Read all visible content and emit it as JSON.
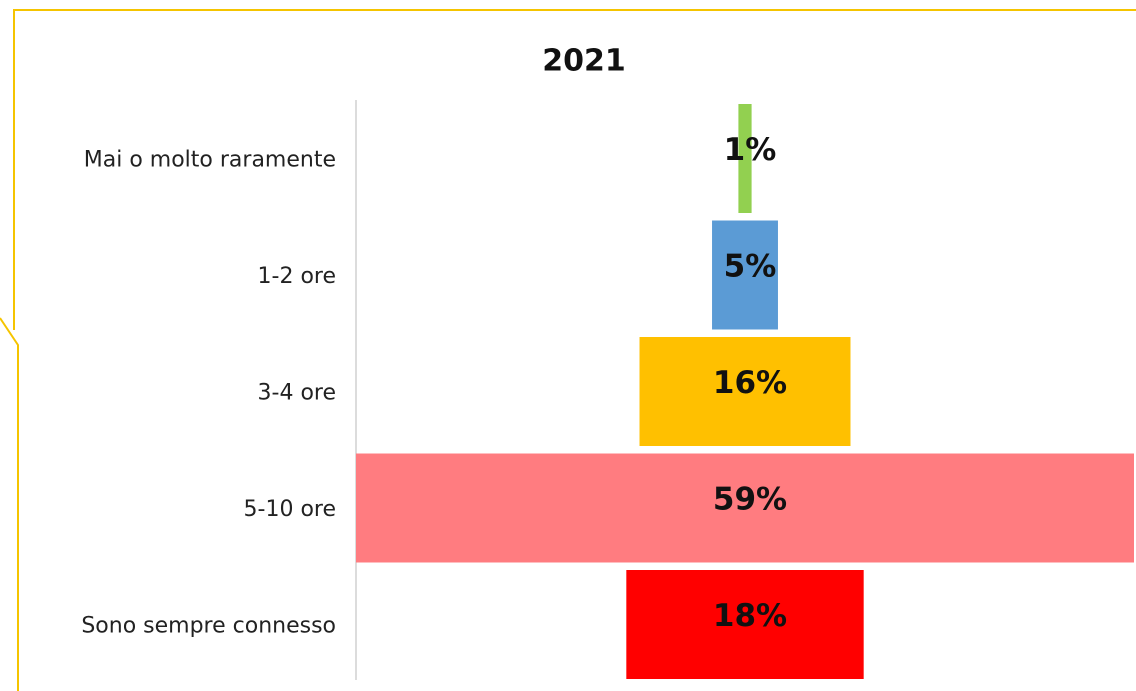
{
  "chart_data": {
    "type": "funnel",
    "title": "2021",
    "categories": [
      "Mai o molto raramente",
      "1-2 ore",
      "3-4 ore",
      "5-10 ore",
      "Sono sempre connesso"
    ],
    "values": [
      1,
      5,
      16,
      59,
      18
    ],
    "value_labels": [
      "1%",
      "5%",
      "16%",
      "59%",
      "18%"
    ],
    "colors": [
      "#92d050",
      "#5b9bd5",
      "#ffc000",
      "#ff7c80",
      "#ff0000"
    ]
  }
}
